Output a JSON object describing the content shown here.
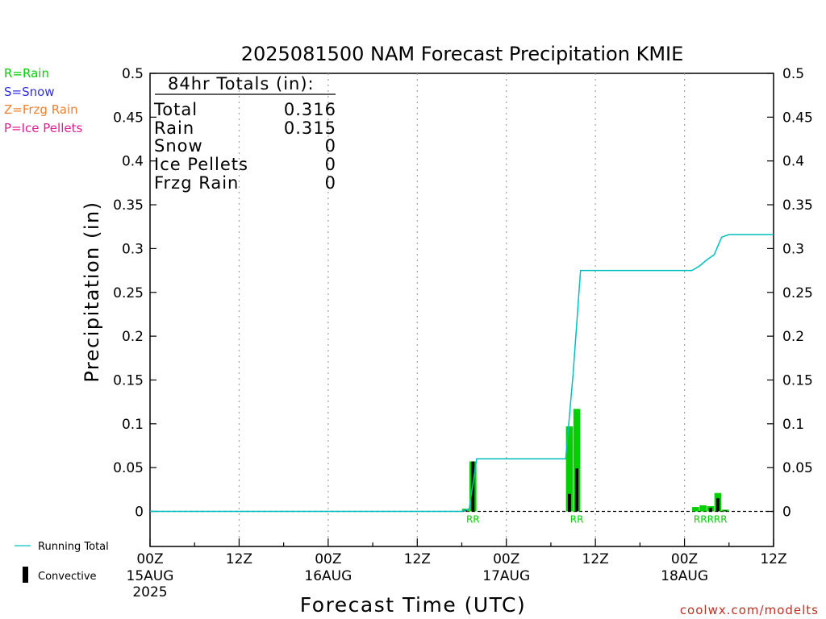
{
  "chart_data": {
    "type": "bar",
    "title": "2025081500 NAM Forecast Precipitation KMIE",
    "xlabel": "Forecast Time (UTC)",
    "ylabel": "Precipitation (in)",
    "ylim": [
      -0.04,
      0.5
    ],
    "xlim_hours": [
      0,
      84
    ],
    "yticks": [
      "0",
      "0.05",
      "0.1",
      "0.15",
      "0.2",
      "0.25",
      "0.3",
      "0.35",
      "0.4",
      "0.45",
      "0.5"
    ],
    "yticks_right": [
      "0",
      "0.05",
      "0.1",
      "0.15",
      "0.2",
      "0.25",
      "0.3",
      "0.35",
      "0.4",
      "0.45",
      "0.5"
    ],
    "xticks": [
      {
        "hour": 0,
        "time": "00Z",
        "date": "15AUG",
        "year": "2025"
      },
      {
        "hour": 12,
        "time": "12Z",
        "date": "",
        "year": ""
      },
      {
        "hour": 24,
        "time": "00Z",
        "date": "16AUG",
        "year": ""
      },
      {
        "hour": 36,
        "time": "12Z",
        "date": "",
        "year": ""
      },
      {
        "hour": 48,
        "time": "00Z",
        "date": "17AUG",
        "year": ""
      },
      {
        "hour": 60,
        "time": "12Z",
        "date": "",
        "year": ""
      },
      {
        "hour": 72,
        "time": "00Z",
        "date": "18AUG",
        "year": ""
      },
      {
        "hour": 84,
        "time": "12Z",
        "date": "",
        "year": ""
      }
    ],
    "grid_hours": [
      12,
      24,
      36,
      48,
      60,
      72
    ],
    "grid": "dotted vertical",
    "bars": [
      {
        "hour": 43,
        "rain": 0.003,
        "convective": 0.002
      },
      {
        "hour": 44,
        "rain": 0.057,
        "convective": 0.057
      },
      {
        "hour": 57,
        "rain": 0.097,
        "convective": 0.02
      },
      {
        "hour": 58,
        "rain": 0.117,
        "convective": 0.049
      },
      {
        "hour": 74,
        "rain": 0.005,
        "convective": 0.0
      },
      {
        "hour": 75,
        "rain": 0.007,
        "convective": 0.0
      },
      {
        "hour": 76,
        "rain": 0.006,
        "convective": 0.004
      },
      {
        "hour": 77,
        "rain": 0.021,
        "convective": 0.015
      },
      {
        "hour": 78,
        "rain": 0.002,
        "convective": 0.001
      }
    ],
    "running_total": [
      [
        0,
        0
      ],
      [
        42,
        0
      ],
      [
        43,
        0.003
      ],
      [
        44,
        0.06
      ],
      [
        56,
        0.06
      ],
      [
        57,
        0.157
      ],
      [
        58,
        0.275
      ],
      [
        73,
        0.275
      ],
      [
        74,
        0.28
      ],
      [
        75,
        0.287
      ],
      [
        76,
        0.293
      ],
      [
        77,
        0.313
      ],
      [
        78,
        0.316
      ],
      [
        84,
        0.316
      ]
    ],
    "ptype_markers": [
      {
        "hour": 44,
        "text": "RR"
      },
      {
        "hour": 58,
        "text": "RR"
      },
      {
        "hour": 76,
        "text": "RRRRR"
      }
    ],
    "colors": {
      "rain": "#00d000",
      "convective": "#000000",
      "running_total": "#00c0c0",
      "snow": "#3030e0",
      "frzg_rain": "#f08030",
      "ice_pellets": "#e02090",
      "grid": "#a0a0a0"
    }
  },
  "type_legend": [
    {
      "text": "R=Rain",
      "color": "#00d000"
    },
    {
      "text": "S=Snow",
      "color": "#3030e0"
    },
    {
      "text": "Z=Frzg Rain",
      "color": "#f08030"
    },
    {
      "text": "P=Ice Pellets",
      "color": "#e02090"
    }
  ],
  "totals_box": {
    "heading": "84hr Totals (in):",
    "rows": [
      {
        "label": "Total",
        "value": "0.316"
      },
      {
        "label": "Rain",
        "value": "0.315"
      },
      {
        "label": "Snow",
        "value": "0"
      },
      {
        "label": "Ice Pellets",
        "value": "0"
      },
      {
        "label": "Frzg Rain",
        "value": "0"
      }
    ]
  },
  "bottom_legend": {
    "running_total": "Running Total",
    "convective": "Convective"
  },
  "credit": "coolwx.com/modelts"
}
